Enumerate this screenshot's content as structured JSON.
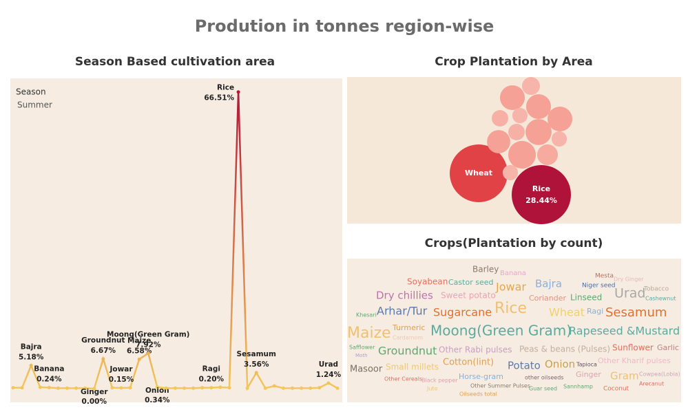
{
  "title": "Prodution in tonnes region-wise",
  "chart_data": [
    {
      "type": "line",
      "title": "Season Based cultivation area",
      "legend_title": "Season",
      "legend_value": "Summer",
      "categories": [
        null,
        null,
        "Bajra",
        null,
        "Banana",
        null,
        null,
        null,
        null,
        "Ginger",
        "Groundnut",
        null,
        "Jowar",
        null,
        "Maize",
        "Moong(Green Gram)",
        "Onion",
        null,
        null,
        null,
        null,
        null,
        "Ragi",
        null,
        null,
        "Rice",
        null,
        "Sesamum",
        null,
        null,
        null,
        null,
        null,
        null,
        null,
        "Urad",
        null
      ],
      "values": [
        0.2,
        0.2,
        5.18,
        0.3,
        0.24,
        0.1,
        0.1,
        0.1,
        0.1,
        0.0,
        6.67,
        0.2,
        0.15,
        0.2,
        6.58,
        7.92,
        0.34,
        0.1,
        0.1,
        0.1,
        0.1,
        0.2,
        0.2,
        0.3,
        0.2,
        66.51,
        0.1,
        3.56,
        0.1,
        0.6,
        0.1,
        0.1,
        0.1,
        0.1,
        0.2,
        1.24,
        0.1
      ],
      "value_labels": [
        null,
        null,
        "5.18%",
        null,
        "0.24%",
        null,
        null,
        null,
        null,
        "0.00%",
        "6.67%",
        null,
        "0.15%",
        null,
        "6.58%",
        "7.92%",
        "0.34%",
        null,
        null,
        null,
        null,
        null,
        "0.20%",
        null,
        null,
        "66.51%",
        null,
        "3.56%",
        null,
        null,
        null,
        null,
        null,
        null,
        null,
        "1.24%",
        null
      ],
      "ylim": [
        0,
        69.4
      ],
      "color_low": "#f2c75c",
      "color_high": "#b5163a"
    },
    {
      "type": "packed_bubble",
      "title": "Crop Plantation by Area",
      "categories": [
        "Wheat",
        "Rice",
        null,
        null,
        null,
        null,
        null,
        null,
        null,
        null,
        null,
        null,
        null,
        null,
        null
      ],
      "values": [
        27.1,
        28.44,
        5.0,
        2.6,
        5.0,
        5.0,
        1.9,
        2.2,
        2.2,
        5.5,
        4.4,
        1.9,
        6.2,
        3.5,
        1.9
      ],
      "value_labels": [
        null,
        "28.44%",
        null,
        null,
        null,
        null,
        null,
        null,
        null,
        null,
        null,
        null,
        null,
        null,
        null
      ],
      "colors": [
        "#e04246",
        "#b0133a",
        "#f5a196",
        "#f7b4aa",
        "#f5a196",
        "#f5a196",
        "#f7b4aa",
        "#f7b0a6",
        "#f7b0a6",
        "#f5a196",
        "#f5a196",
        "#f7b4aa",
        "#f5a196",
        "#f7ab9f",
        "#f7b4aa"
      ]
    },
    {
      "type": "word_cloud",
      "title": "Crops(Plantation by count)",
      "words": [
        "Barley",
        "Banana",
        "Mesta",
        "Dry Ginger",
        "Soyabean",
        "Castor seed",
        "Jowar",
        "Bajra",
        "Niger seed",
        "Tobacco",
        "Urad",
        "Cashewnut",
        "Dry chillies",
        "Sweet potato",
        "Coriander",
        "Linseed",
        "Arhar/Tur",
        "Sugarcane",
        "Rice",
        "Wheat",
        "Ragi",
        "Sesamum",
        "Khesari",
        "Maize",
        "Turmeric",
        "Cardamom",
        "Moong(Green Gram)",
        "Rapeseed &Mustard",
        "Safflower",
        "Moth",
        "Groundnut",
        "Other Rabi pulses",
        "Peas & beans (Pulses)",
        "Sunflower",
        "Garlic",
        "Small millets",
        "Cotton(lint)",
        "Potato",
        "Onion",
        "Tapioca",
        "Other Kharif pulses",
        "Masoor",
        "Ginger",
        "Gram",
        "Cowpea(Lobia)",
        "Horse-gram",
        "other oilseeds",
        "Other Cereals",
        "Black pepper",
        "Arecanut",
        "Other Summer Pulses",
        "Guar seed",
        "Sannhamp",
        "Coconut",
        "Jute",
        "Oilseeds total"
      ],
      "colors": [
        "#8a7a6a",
        "#e8a8c8",
        "#b07060",
        "#e8b8b8",
        "#e87060",
        "#5aaaa0",
        "#e6a84a",
        "#8ab0d8",
        "#4a6aa0",
        "#b8a898",
        "#a8a8a8",
        "#5aaaa0",
        "#c070b0",
        "#f0a0b8",
        "#e89080",
        "#5aaa70",
        "#5a7ab0",
        "#e07030",
        "#f0c070",
        "#f0d070",
        "#8ab0d8",
        "#e07030",
        "#5aaa70",
        "#f0c070",
        "#e0a050",
        "#f0c8b0",
        "#5aaaa0",
        "#5aaaa0",
        "#5aaa70",
        "#b0a0c8",
        "#5aaa70",
        "#c8a0c0",
        "#c0b0a0",
        "#e07060",
        "#c08080",
        "#f0c870",
        "#e0a050",
        "#5a7ab0",
        "#c8a050",
        "#605060",
        "#f0b8c8",
        "#7a7060",
        "#e0a0b0",
        "#f0c070",
        "#c8a8b8",
        "#8ab0d8",
        "#806070",
        "#e07060",
        "#e0a0b0",
        "#e07060",
        "#8a7a6a",
        "#5aaa70",
        "#5aaa70",
        "#e07060",
        "#f0c870",
        "#e0a050"
      ]
    }
  ]
}
